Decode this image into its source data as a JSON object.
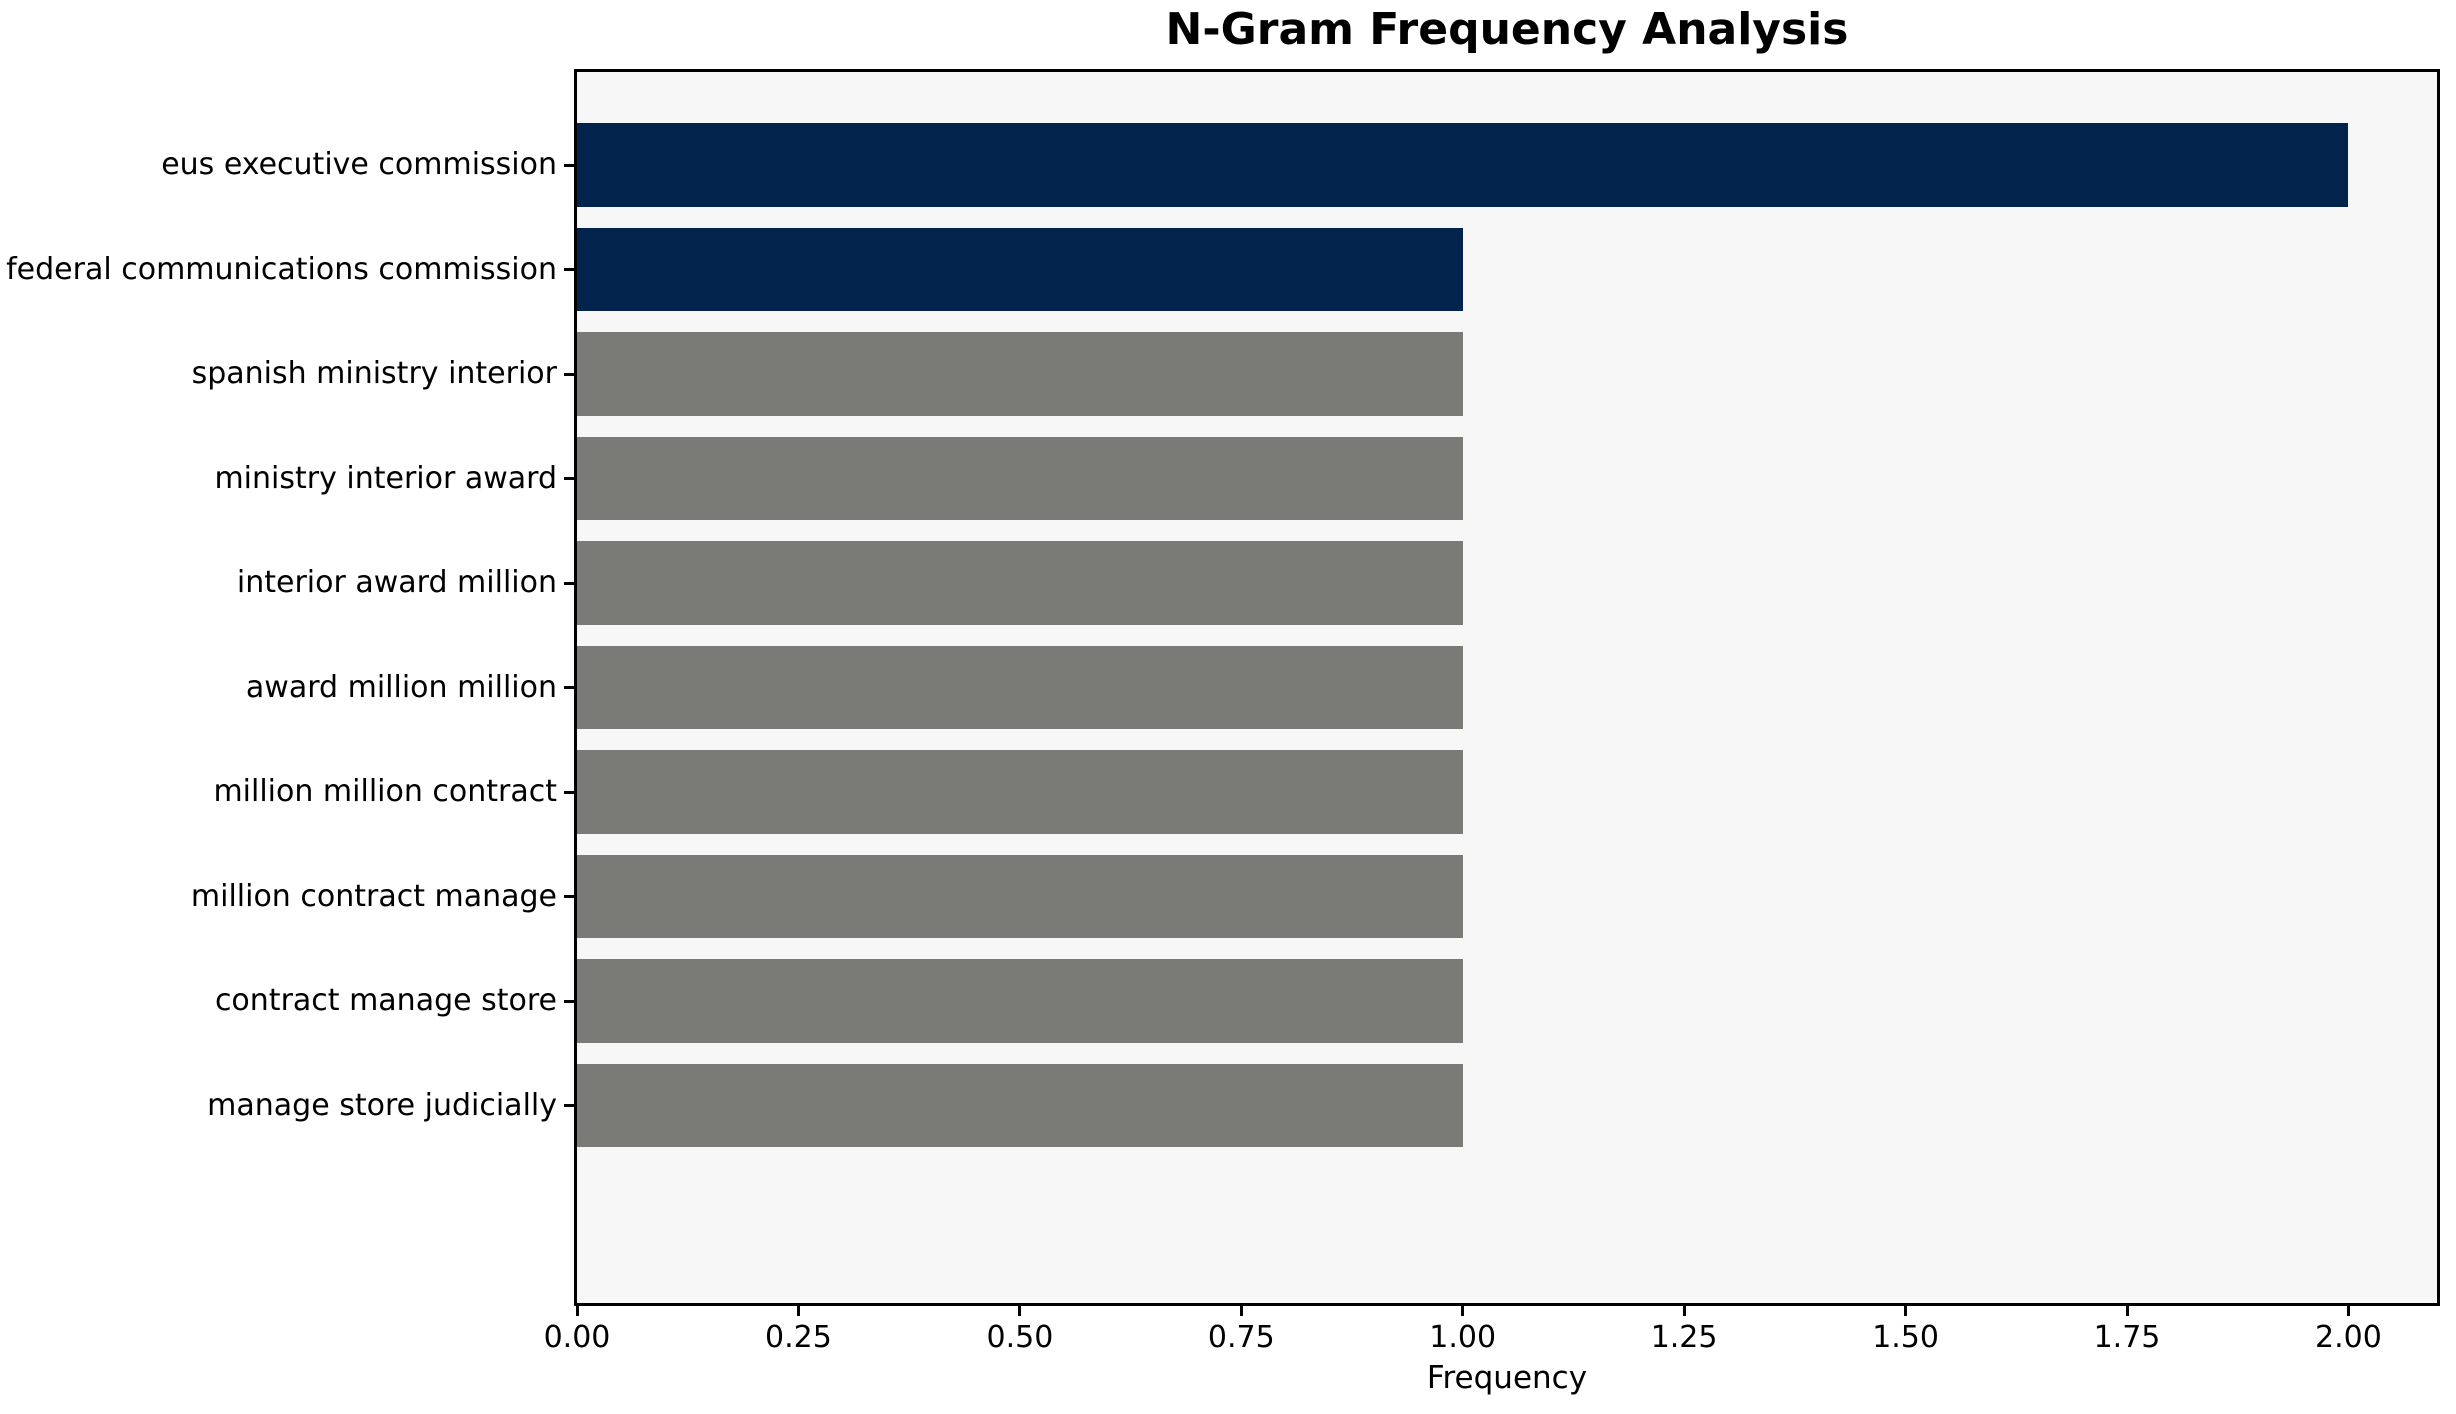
{
  "chart_data": {
    "type": "bar",
    "orientation": "horizontal",
    "title": "N-Gram Frequency Analysis",
    "xlabel": "Frequency",
    "ylabel": "",
    "categories": [
      "eus executive commission",
      "federal communications commission",
      "spanish ministry interior",
      "ministry interior award",
      "interior award million",
      "award million million",
      "million million contract",
      "million contract manage",
      "contract manage store",
      "manage store judicially"
    ],
    "values": [
      2,
      1,
      1,
      1,
      1,
      1,
      1,
      1,
      1,
      1
    ],
    "bar_colors": [
      "#02234c",
      "#02234c",
      "#7a7a77",
      "#7a7a77",
      "#7a7a77",
      "#7a7a77",
      "#7a7a77",
      "#7a7a77",
      "#7a7a77",
      "#7a7a77"
    ],
    "highlight_color": "#02234c",
    "default_color": "#7a7a77",
    "xlim": [
      0,
      2.1
    ],
    "x_tick_values": [
      0,
      0.25,
      0.5,
      0.75,
      1.0,
      1.25,
      1.5,
      1.75,
      2.0
    ],
    "x_tick_labels": [
      "0.00",
      "0.25",
      "0.50",
      "0.75",
      "1.00",
      "1.25",
      "1.50",
      "1.75",
      "2.00"
    ],
    "grid": false,
    "legend": false,
    "plot_background": "#f7f7f7",
    "figure_background": "#ffffff",
    "spine_color": "#000000"
  }
}
